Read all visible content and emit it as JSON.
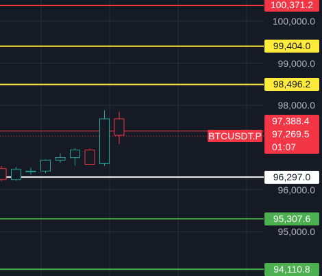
{
  "symbol": "BTCUSDT.P",
  "countdown": "01:07",
  "current_price": "97,388.4",
  "marker_price": "97,269.5",
  "price_scale": {
    "labels": [
      "100,000.0",
      "99,000.0",
      "98,000.0",
      "96,000.0",
      "95,000.0"
    ]
  },
  "price_lines": [
    {
      "label": "100,371.2",
      "color": "#f23645",
      "style": "red"
    },
    {
      "label": "99,404.0",
      "color": "#ffeb3b",
      "style": "yellow"
    },
    {
      "label": "98,496.2",
      "color": "#ffeb3b",
      "style": "yellow"
    },
    {
      "label": "96,297.0",
      "color": "#ffffff",
      "style": "white"
    },
    {
      "label": "95,307.6",
      "color": "#4caf50",
      "style": "green"
    },
    {
      "label": "94,110.8",
      "color": "#4caf50",
      "style": "green"
    }
  ],
  "colors": {
    "background": "#161a25",
    "grid": "#2a2e39",
    "up": "#26a69a",
    "down": "#f23645"
  },
  "chart_data": {
    "type": "candlestick",
    "ylim": [
      93950,
      100500
    ],
    "candles": [
      {
        "open": 96500,
        "high": 96560,
        "low": 96200,
        "close": 96240
      },
      {
        "open": 96240,
        "high": 96540,
        "low": 96210,
        "close": 96480
      },
      {
        "open": 96420,
        "high": 96520,
        "low": 96360,
        "close": 96440
      },
      {
        "open": 96440,
        "high": 96720,
        "low": 96390,
        "close": 96700
      },
      {
        "open": 96700,
        "high": 96860,
        "low": 96640,
        "close": 96760
      },
      {
        "open": 96760,
        "high": 96990,
        "low": 96570,
        "close": 96940
      },
      {
        "open": 96940,
        "high": 96970,
        "low": 96600,
        "close": 96600
      },
      {
        "open": 96620,
        "high": 97880,
        "low": 96560,
        "close": 97680
      },
      {
        "open": 97680,
        "high": 97850,
        "low": 97080,
        "close": 97290
      }
    ]
  }
}
